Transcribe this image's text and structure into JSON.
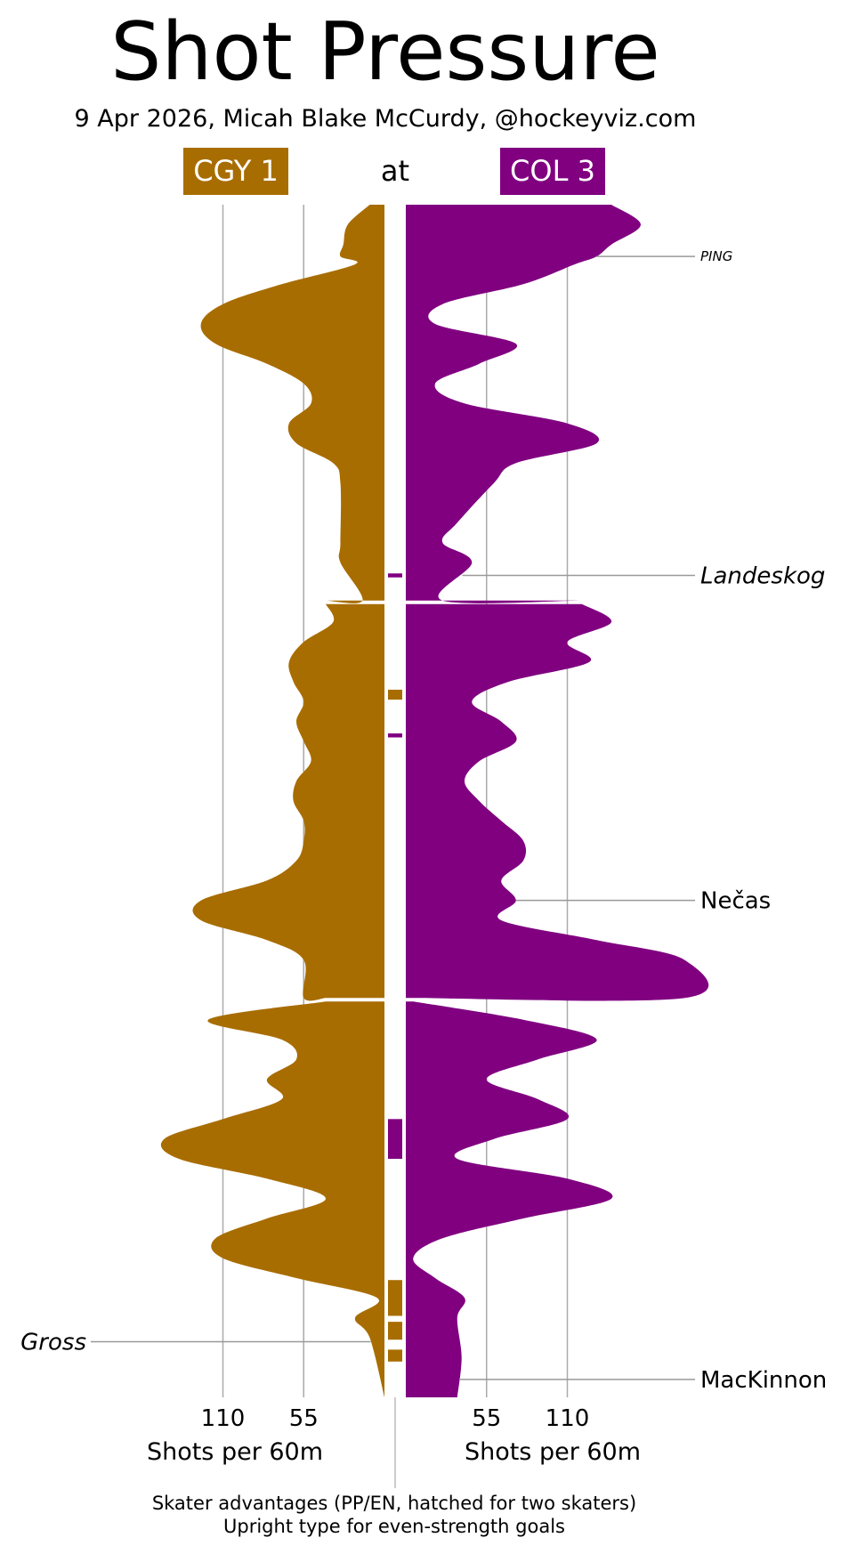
{
  "title": "Shot Pressure",
  "subtitle": "9 Apr 2026, Micah Blake McCurdy, @hockeyviz.com",
  "header": {
    "away_label": "CGY 1",
    "separator": "at",
    "home_label": "COL 3"
  },
  "colors": {
    "away": "#A86D00",
    "home": "#800080",
    "grid": "#AAAAAA",
    "leader": "#999999"
  },
  "chart_data": {
    "type": "area",
    "orientation": "vertical-mirrored",
    "unit": "Shots per 60m",
    "x_max": 190,
    "periods": 3,
    "minutes_per_period": 20,
    "grid_values": [
      55,
      110
    ],
    "away": {
      "team": "CGY",
      "axis_ticks": [
        "110",
        "55"
      ],
      "xlabel": "Shots per 60m",
      "rate_profile": [
        [
          0,
          10
        ],
        [
          1,
          25
        ],
        [
          2,
          28
        ],
        [
          2.6,
          30
        ],
        [
          3,
          20
        ],
        [
          4,
          70
        ],
        [
          5,
          110
        ],
        [
          6,
          125
        ],
        [
          7,
          115
        ],
        [
          8,
          80
        ],
        [
          9,
          55
        ],
        [
          10,
          50
        ],
        [
          11,
          65
        ],
        [
          12,
          60
        ],
        [
          13,
          35
        ],
        [
          14,
          30
        ],
        [
          17,
          30
        ],
        [
          18,
          30
        ],
        [
          20,
          15
        ],
        [
          20,
          40
        ],
        [
          21,
          35
        ],
        [
          22,
          55
        ],
        [
          23,
          65
        ],
        [
          24,
          62
        ],
        [
          25,
          55
        ],
        [
          26,
          60
        ],
        [
          27,
          55
        ],
        [
          28,
          50
        ],
        [
          29,
          60
        ],
        [
          30,
          62
        ],
        [
          31,
          55
        ],
        [
          32,
          55
        ],
        [
          33,
          60
        ],
        [
          34,
          80
        ],
        [
          35,
          125
        ],
        [
          36,
          125
        ],
        [
          37,
          80
        ],
        [
          38,
          55
        ],
        [
          40,
          55
        ],
        [
          40,
          40
        ],
        [
          41,
          120
        ],
        [
          42,
          70
        ],
        [
          43,
          60
        ],
        [
          44,
          80
        ],
        [
          45,
          70
        ],
        [
          46,
          110
        ],
        [
          47,
          150
        ],
        [
          48,
          140
        ],
        [
          49,
          80
        ],
        [
          50,
          40
        ],
        [
          51,
          80
        ],
        [
          52,
          115
        ],
        [
          53,
          110
        ],
        [
          54,
          60
        ],
        [
          55,
          5
        ],
        [
          56,
          20
        ],
        [
          57,
          10
        ],
        [
          60,
          0
        ]
      ]
    },
    "home": {
      "team": "COL",
      "axis_ticks": [
        "55",
        "110"
      ],
      "xlabel": "Shots per 60m",
      "rate_profile": [
        [
          0,
          140
        ],
        [
          1,
          160
        ],
        [
          2,
          140
        ],
        [
          2.6,
          130
        ],
        [
          3,
          115
        ],
        [
          4,
          80
        ],
        [
          5,
          25
        ],
        [
          6,
          20
        ],
        [
          7,
          75
        ],
        [
          8,
          50
        ],
        [
          9,
          20
        ],
        [
          10,
          40
        ],
        [
          11,
          110
        ],
        [
          12,
          130
        ],
        [
          13,
          75
        ],
        [
          14,
          60
        ],
        [
          16,
          35
        ],
        [
          17,
          25
        ],
        [
          18,
          45
        ],
        [
          20,
          25
        ],
        [
          20,
          120
        ],
        [
          21,
          140
        ],
        [
          22,
          110
        ],
        [
          23,
          125
        ],
        [
          24,
          70
        ],
        [
          25,
          45
        ],
        [
          26,
          65
        ],
        [
          27,
          75
        ],
        [
          28,
          50
        ],
        [
          29,
          40
        ],
        [
          30,
          50
        ],
        [
          31,
          65
        ],
        [
          32,
          80
        ],
        [
          33,
          80
        ],
        [
          34,
          65
        ],
        [
          35,
          75
        ],
        [
          36,
          65
        ],
        [
          37,
          130
        ],
        [
          38,
          190
        ],
        [
          40,
          190
        ],
        [
          40,
          5
        ],
        [
          41,
          80
        ],
        [
          42,
          130
        ],
        [
          43,
          90
        ],
        [
          44,
          55
        ],
        [
          45,
          90
        ],
        [
          46,
          110
        ],
        [
          47,
          60
        ],
        [
          48,
          35
        ],
        [
          49,
          110
        ],
        [
          50,
          140
        ],
        [
          51,
          80
        ],
        [
          52,
          25
        ],
        [
          53,
          5
        ],
        [
          54,
          20
        ],
        [
          55,
          40
        ],
        [
          56,
          35
        ],
        [
          58,
          38
        ],
        [
          60,
          35
        ]
      ]
    },
    "skater_advantages": [
      {
        "team": "home",
        "start": 18.55,
        "end": 18.75
      },
      {
        "team": "away",
        "start": 24.4,
        "end": 24.9
      },
      {
        "team": "home",
        "start": 26.6,
        "end": 26.8
      },
      {
        "team": "home",
        "start": 46.0,
        "end": 48.0
      },
      {
        "team": "away",
        "start": 54.1,
        "end": 55.9
      },
      {
        "team": "away",
        "start": 56.2,
        "end": 57.1
      },
      {
        "team": "away",
        "start": 57.6,
        "end": 58.2
      }
    ],
    "goals": [
      {
        "team": "home",
        "minute": 2.6,
        "player": "PING",
        "italic": true,
        "small": true
      },
      {
        "team": "home",
        "minute": 18.65,
        "player": "Landeskog",
        "italic": true,
        "small": false
      },
      {
        "team": "home",
        "minute": 35.0,
        "player": "Nečas",
        "italic": false,
        "small": false
      },
      {
        "team": "away",
        "minute": 57.2,
        "player": "Gross",
        "italic": true,
        "small": false
      },
      {
        "team": "home",
        "minute": 59.1,
        "player": "MacKinnon",
        "italic": false,
        "small": false
      }
    ]
  },
  "footnote": {
    "line1": "Skater advantages (PP/EN, hatched for two skaters)",
    "line2": "Upright type for even-strength goals"
  }
}
